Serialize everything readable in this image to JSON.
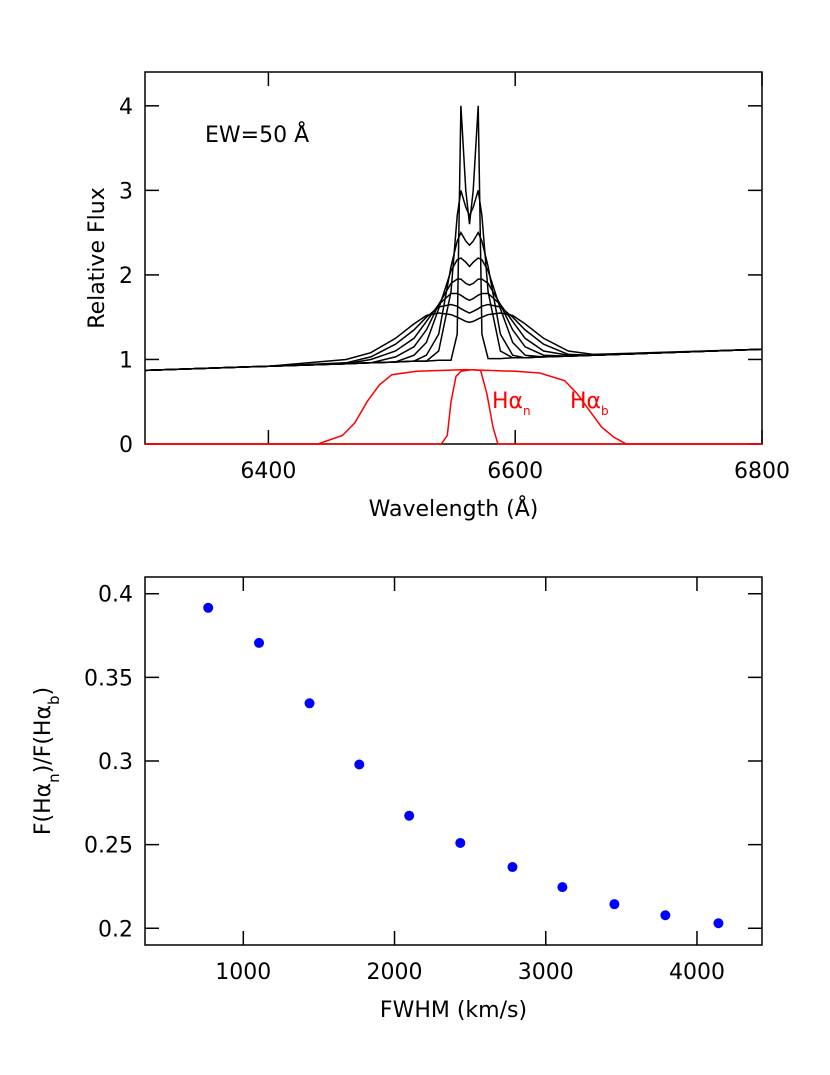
{
  "chart_data": [
    {
      "type": "line",
      "xlabel": "Wavelength (Å)",
      "ylabel": "Relative Flux",
      "annotation": "EW=50 Å",
      "xlim": [
        6300,
        6800
      ],
      "xticks": [
        6400,
        6600,
        6800
      ],
      "ylim": [
        0,
        4.4
      ],
      "yticks": [
        0,
        1,
        2,
        3,
        4
      ],
      "x": [
        6300,
        6400,
        6463,
        6483,
        6503,
        6518,
        6528,
        6538,
        6548,
        6553,
        6556,
        6560,
        6563,
        6566,
        6570,
        6573,
        6578,
        6588,
        6598,
        6608,
        6623,
        6643,
        6663,
        6800
      ],
      "series": [
        {
          "color": "#000000",
          "values": [
            0.87,
            0.92,
            0.95,
            0.96,
            0.97,
            0.98,
            0.98,
            0.99,
            0.99,
            1.3,
            4.0,
            3.0,
            2.6,
            3.0,
            4.0,
            1.3,
            1.01,
            1.01,
            1.02,
            1.02,
            1.03,
            1.04,
            1.05,
            1.12
          ]
        },
        {
          "color": "#000000",
          "values": [
            0.87,
            0.92,
            0.95,
            0.96,
            0.97,
            0.98,
            0.98,
            1.1,
            1.8,
            2.7,
            3.0,
            2.8,
            2.7,
            2.8,
            3.0,
            2.7,
            1.8,
            1.1,
            1.02,
            1.02,
            1.03,
            1.04,
            1.05,
            1.12
          ]
        },
        {
          "color": "#000000",
          "values": [
            0.87,
            0.92,
            0.95,
            0.96,
            0.97,
            0.98,
            1.05,
            1.3,
            2.1,
            2.4,
            2.5,
            2.4,
            2.35,
            2.4,
            2.5,
            2.4,
            2.1,
            1.3,
            1.05,
            1.02,
            1.03,
            1.04,
            1.05,
            1.12
          ]
        },
        {
          "color": "#000000",
          "values": [
            0.87,
            0.92,
            0.95,
            0.96,
            0.97,
            1.05,
            1.2,
            1.6,
            2.05,
            2.18,
            2.2,
            2.15,
            2.1,
            2.15,
            2.2,
            2.18,
            2.05,
            1.6,
            1.2,
            1.05,
            1.03,
            1.04,
            1.05,
            1.12
          ]
        },
        {
          "color": "#000000",
          "values": [
            0.87,
            0.92,
            0.95,
            0.96,
            1.03,
            1.15,
            1.35,
            1.65,
            1.9,
            1.95,
            1.95,
            1.9,
            1.88,
            1.9,
            1.95,
            1.95,
            1.9,
            1.65,
            1.35,
            1.15,
            1.05,
            1.04,
            1.05,
            1.12
          ]
        },
        {
          "color": "#000000",
          "values": [
            0.87,
            0.92,
            0.95,
            1.0,
            1.1,
            1.25,
            1.45,
            1.65,
            1.78,
            1.78,
            1.76,
            1.72,
            1.7,
            1.72,
            1.76,
            1.78,
            1.78,
            1.65,
            1.45,
            1.25,
            1.1,
            1.05,
            1.05,
            1.12
          ]
        },
        {
          "color": "#000000",
          "values": [
            0.87,
            0.92,
            0.96,
            1.03,
            1.18,
            1.35,
            1.5,
            1.62,
            1.65,
            1.63,
            1.6,
            1.57,
            1.55,
            1.57,
            1.6,
            1.63,
            1.65,
            1.62,
            1.5,
            1.35,
            1.18,
            1.06,
            1.05,
            1.12
          ]
        },
        {
          "color": "#000000",
          "values": [
            0.87,
            0.92,
            1.0,
            1.08,
            1.25,
            1.42,
            1.52,
            1.55,
            1.53,
            1.5,
            1.48,
            1.45,
            1.44,
            1.45,
            1.48,
            1.5,
            1.53,
            1.55,
            1.52,
            1.42,
            1.25,
            1.1,
            1.06,
            1.12
          ]
        },
        {
          "name": "Hα",
          "name_sub": "n",
          "color": "#ff0000",
          "x": [
            6300,
            6540,
            6545,
            6548,
            6552,
            6556,
            6565,
            6572,
            6577,
            6582,
            6586,
            6800
          ],
          "values": [
            0,
            0,
            0.1,
            0.5,
            0.8,
            0.86,
            0.88,
            0.87,
            0.6,
            0.2,
            0,
            0
          ]
        },
        {
          "name": "Hα",
          "name_sub": "b",
          "color": "#ff0000",
          "x": [
            6300,
            6440,
            6460,
            6470,
            6480,
            6490,
            6500,
            6520,
            6560,
            6600,
            6620,
            6640,
            6650,
            6660,
            6670,
            6680,
            6690,
            6800
          ],
          "values": [
            0,
            0,
            0.1,
            0.25,
            0.5,
            0.7,
            0.82,
            0.86,
            0.88,
            0.86,
            0.84,
            0.75,
            0.6,
            0.4,
            0.2,
            0.08,
            0,
            0
          ]
        }
      ]
    },
    {
      "type": "scatter",
      "xlabel": "FWHM (km/s)",
      "ylabel": [
        "F(Hα",
        "n",
        ")/F(Hα",
        "b",
        ")"
      ],
      "xlim": [
        350,
        4430
      ],
      "xticks": [
        1000,
        2000,
        3000,
        4000
      ],
      "ylim": [
        0.19,
        0.41
      ],
      "yticks": [
        0.2,
        0.25,
        0.3,
        0.35,
        0.4
      ],
      "color": "#0000ff",
      "x": [
        768,
        1104,
        1438,
        1767,
        2097,
        2435,
        2780,
        3110,
        3454,
        3791,
        4142
      ],
      "values": [
        0.3916,
        0.3706,
        0.3345,
        0.2979,
        0.2673,
        0.251,
        0.2366,
        0.2246,
        0.2144,
        0.2078,
        0.203
      ]
    }
  ]
}
